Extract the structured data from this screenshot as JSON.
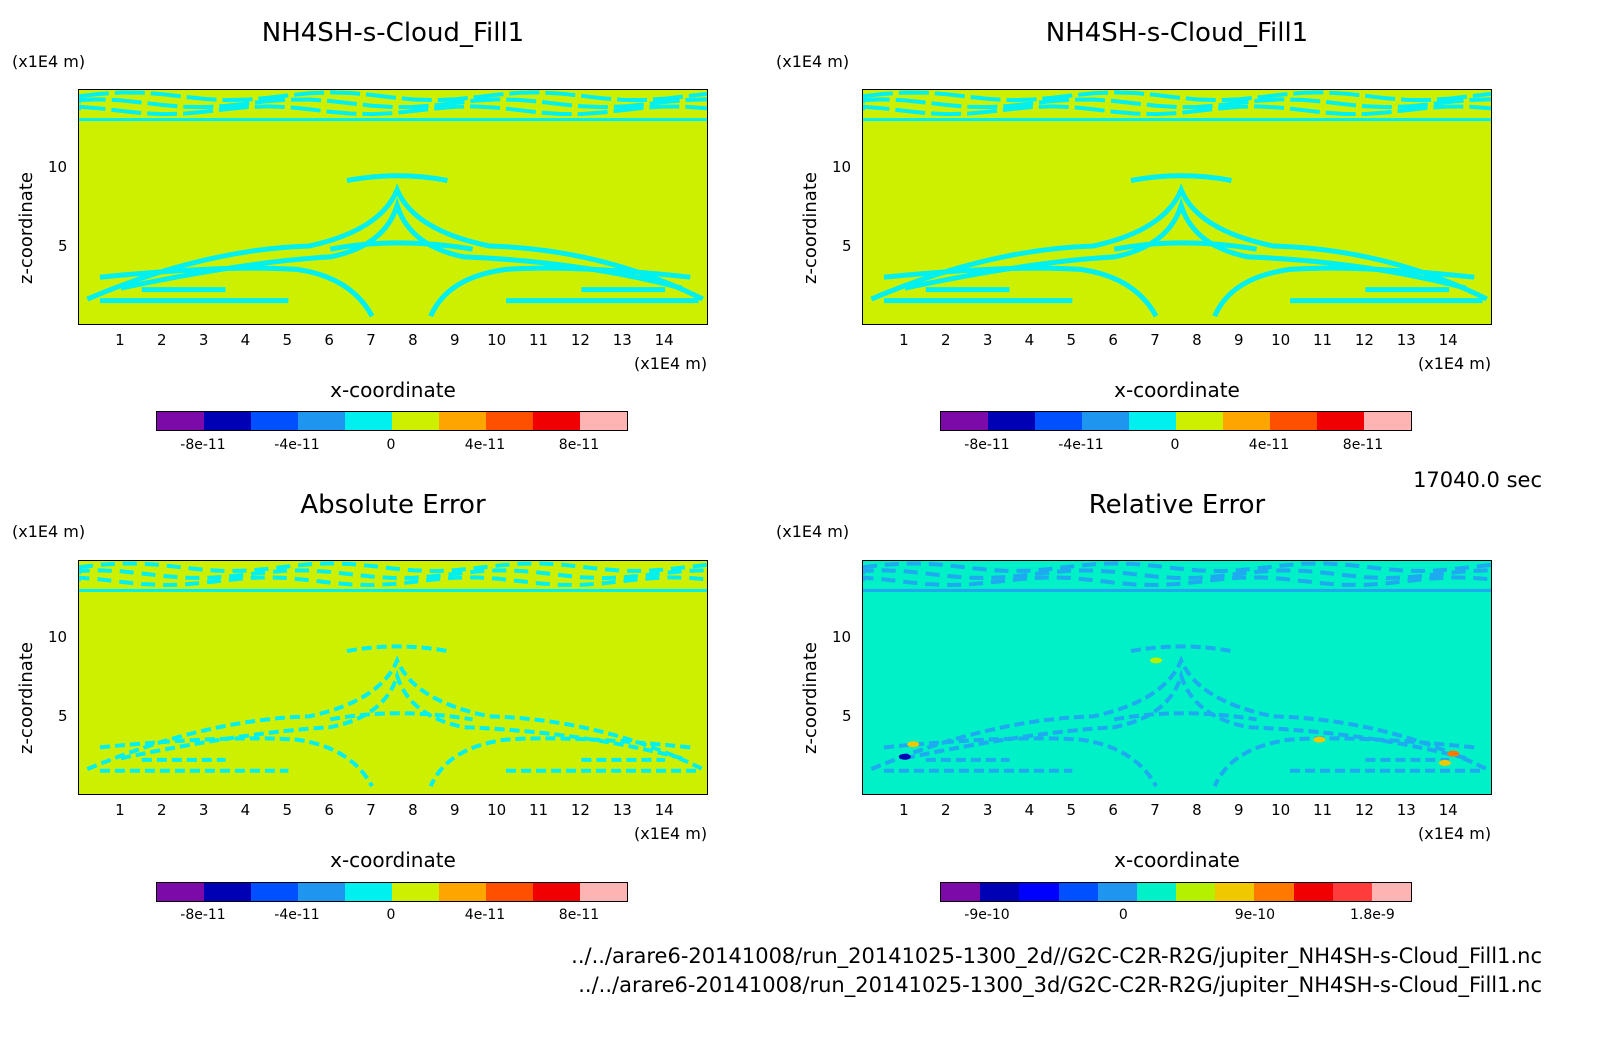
{
  "panels": [
    {
      "id": "p1",
      "title": "NH4SH-s-Cloud_Fill1",
      "y_unit": "(x1E4 m)",
      "x_unit": "(x1E4 m)",
      "xlabel": "x-coordinate",
      "ylabel": "z-coordinate",
      "xticks": [
        "1",
        "2",
        "3",
        "4",
        "5",
        "6",
        "7",
        "8",
        "9",
        "10",
        "11",
        "12",
        "13",
        "14"
      ],
      "yticks": [
        "5",
        "10"
      ],
      "colorbar": {
        "colors": [
          "#7b0aa8",
          "#0000b4",
          "#0050ff",
          "#1e96f0",
          "#00f0f0",
          "#cdf000",
          "#ffa500",
          "#ff5000",
          "#f00000",
          "#ffb4b4"
        ],
        "labels": [
          "-8e-11",
          "-4e-11",
          "0",
          "4e-11",
          "8e-11"
        ]
      }
    },
    {
      "id": "p2",
      "title": "NH4SH-s-Cloud_Fill1",
      "y_unit": "(x1E4 m)",
      "x_unit": "(x1E4 m)",
      "xlabel": "x-coordinate",
      "ylabel": "z-coordinate",
      "xticks": [
        "1",
        "2",
        "3",
        "4",
        "5",
        "6",
        "7",
        "8",
        "9",
        "10",
        "11",
        "12",
        "13",
        "14"
      ],
      "yticks": [
        "5",
        "10"
      ],
      "colorbar": {
        "colors": [
          "#7b0aa8",
          "#0000b4",
          "#0050ff",
          "#1e96f0",
          "#00f0f0",
          "#cdf000",
          "#ffa500",
          "#ff5000",
          "#f00000",
          "#ffb4b4"
        ],
        "labels": [
          "-8e-11",
          "-4e-11",
          "0",
          "4e-11",
          "8e-11"
        ]
      }
    },
    {
      "id": "p3",
      "title": "Absolute Error",
      "y_unit": "(x1E4 m)",
      "x_unit": "(x1E4 m)",
      "xlabel": "x-coordinate",
      "ylabel": "z-coordinate",
      "xticks": [
        "1",
        "2",
        "3",
        "4",
        "5",
        "6",
        "7",
        "8",
        "9",
        "10",
        "11",
        "12",
        "13",
        "14"
      ],
      "yticks": [
        "5",
        "10"
      ],
      "colorbar": {
        "colors": [
          "#7b0aa8",
          "#0000b4",
          "#0050ff",
          "#1e96f0",
          "#00f0f0",
          "#cdf000",
          "#ffa500",
          "#ff5000",
          "#f00000",
          "#ffb4b4"
        ],
        "labels": [
          "-8e-11",
          "-4e-11",
          "0",
          "4e-11",
          "8e-11"
        ]
      }
    },
    {
      "id": "p4",
      "title": "Relative Error",
      "y_unit": "(x1E4 m)",
      "x_unit": "(x1E4 m)",
      "xlabel": "x-coordinate",
      "ylabel": "z-coordinate",
      "xticks": [
        "1",
        "2",
        "3",
        "4",
        "5",
        "6",
        "7",
        "8",
        "9",
        "10",
        "11",
        "12",
        "13",
        "14"
      ],
      "yticks": [
        "5",
        "10"
      ],
      "colorbar": {
        "colors": [
          "#7b0aa8",
          "#0000b4",
          "#0000ff",
          "#0050ff",
          "#1e96f0",
          "#00f0c8",
          "#b4f000",
          "#f0c800",
          "#ff7800",
          "#f00000",
          "#ff3c3c",
          "#ffb4b4"
        ],
        "labels": [
          "-9e-10",
          "0",
          "9e-10",
          "1.8e-9"
        ]
      }
    }
  ],
  "timestamp": "17040.0 sec",
  "footer_lines": [
    "../../arare6-20141008/run_20141025-1300_2d//G2C-C2R-R2G/jupiter_NH4SH-s-Cloud_Fill1.nc",
    "../../arare6-20141008/run_20141025-1300_3d/G2C-C2R-R2G/jupiter_NH4SH-s-Cloud_Fill1.nc"
  ],
  "chart_data": [
    {
      "type": "heatmap",
      "title": "NH4SH-s-Cloud_Fill1",
      "xlabel": "x-coordinate",
      "ylabel": "z-coordinate",
      "x_unit": "(x1E4 m)",
      "y_unit": "(x1E4 m)",
      "xlim": [
        0,
        15
      ],
      "ylim": [
        0,
        15
      ],
      "colorbar_range": [
        -1e-10,
        1e-10
      ],
      "background_value": "0 to 2e-11 (yellow-green)",
      "pattern_value": "-2e-11 to 0 (cyan)"
    },
    {
      "type": "heatmap",
      "title": "NH4SH-s-Cloud_Fill1",
      "xlabel": "x-coordinate",
      "ylabel": "z-coordinate",
      "x_unit": "(x1E4 m)",
      "y_unit": "(x1E4 m)",
      "xlim": [
        0,
        15
      ],
      "ylim": [
        0,
        15
      ],
      "colorbar_range": [
        -1e-10,
        1e-10
      ]
    },
    {
      "type": "heatmap",
      "title": "Absolute Error",
      "xlabel": "x-coordinate",
      "ylabel": "z-coordinate",
      "x_unit": "(x1E4 m)",
      "y_unit": "(x1E4 m)",
      "xlim": [
        0,
        15
      ],
      "ylim": [
        0,
        15
      ],
      "colorbar_range": [
        -1e-10,
        1e-10
      ]
    },
    {
      "type": "heatmap",
      "title": "Relative Error",
      "xlabel": "x-coordinate",
      "ylabel": "z-coordinate",
      "x_unit": "(x1E4 m)",
      "y_unit": "(x1E4 m)",
      "xlim": [
        0,
        15
      ],
      "ylim": [
        0,
        15
      ],
      "colorbar_range": [
        -1.35e-09,
        2.1e-09
      ]
    }
  ]
}
